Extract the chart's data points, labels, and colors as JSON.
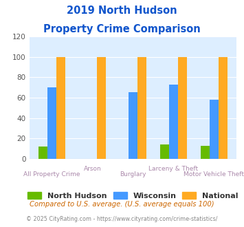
{
  "title_line1": "2019 North Hudson",
  "title_line2": "Property Crime Comparison",
  "categories": [
    "All Property Crime",
    "Arson",
    "Burglary",
    "Larceny & Theft",
    "Motor Vehicle Theft"
  ],
  "north_hudson": [
    12,
    0,
    0,
    14,
    13
  ],
  "wisconsin": [
    70,
    0,
    65,
    73,
    58
  ],
  "national": [
    100,
    100,
    100,
    100,
    100
  ],
  "north_hudson_color": "#66bb00",
  "wisconsin_color": "#4499ff",
  "national_color": "#ffaa22",
  "title_color": "#1155cc",
  "xlabel_color": "#aa88aa",
  "plot_bg": "#ddeeff",
  "ylim": [
    0,
    120
  ],
  "yticks": [
    0,
    20,
    40,
    60,
    80,
    100,
    120
  ],
  "footnote1": "Compared to U.S. average. (U.S. average equals 100)",
  "footnote2": "© 2025 CityRating.com - https://www.cityrating.com/crime-statistics/",
  "footnote1_color": "#cc6600",
  "footnote2_color": "#888888",
  "legend_labels": [
    "North Hudson",
    "Wisconsin",
    "National"
  ],
  "group_labels_top": [
    "",
    "Arson",
    "",
    "Larceny & Theft",
    ""
  ],
  "group_labels_bottom": [
    "All Property Crime",
    "",
    "Burglary",
    "",
    "Motor Vehicle Theft"
  ],
  "bar_width": 0.22
}
